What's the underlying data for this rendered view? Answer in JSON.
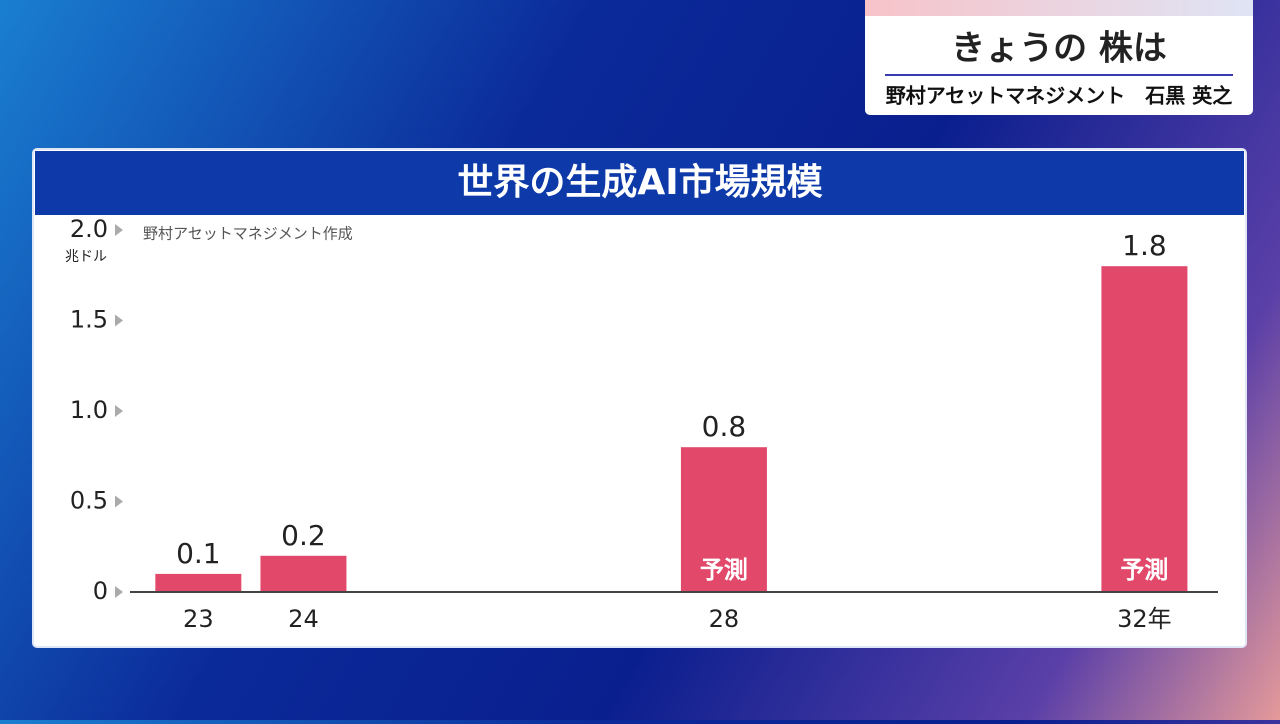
{
  "header": {
    "title": "きょうの 株は",
    "subtitle": "野村アセットマネジメント　石黒 英之"
  },
  "chart_data": {
    "type": "bar",
    "title": "世界の生成AI市場規模",
    "y_unit": "兆ドル",
    "source": "野村アセットマネジメント作成",
    "x": [
      23,
      24,
      28,
      32
    ],
    "values": [
      0.1,
      0.2,
      0.8,
      1.8
    ],
    "color": "#e2486a",
    "xlim": [
      22.35,
      32.7
    ],
    "xticks": [
      23,
      24,
      28,
      {
        "value": 32,
        "label": "32年"
      }
    ],
    "ylim": [
      0,
      2.0
    ],
    "yticks": [
      0,
      0.5,
      {
        "value": 1.0,
        "label": "1.0"
      },
      1.5,
      {
        "value": 2.0,
        "label": "2.0"
      }
    ],
    "annotations": [
      {
        "x": 28,
        "text": "予測"
      },
      {
        "x": 32,
        "text": "予測"
      }
    ]
  }
}
